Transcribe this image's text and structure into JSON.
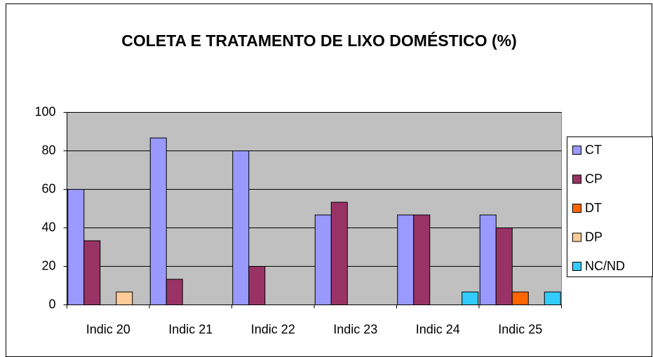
{
  "chart_data": {
    "type": "bar",
    "title": "COLETA E TRATAMENTO DE LIXO DOMÉSTICO (%)",
    "categories": [
      "Indic 20",
      "Indic 21",
      "Indic 22",
      "Indic 23",
      "Indic 24",
      "Indic 25"
    ],
    "series": [
      {
        "name": "CT",
        "color": "#9999ff",
        "values": [
          60,
          86.7,
          80,
          46.7,
          46.7,
          46.7
        ]
      },
      {
        "name": "CP",
        "color": "#993366",
        "values": [
          33.3,
          13.3,
          20,
          53.3,
          46.7,
          40
        ]
      },
      {
        "name": "DT",
        "color": "#ff6600",
        "values": [
          0,
          0,
          0,
          0,
          0,
          6.7
        ]
      },
      {
        "name": "DP",
        "color": "#ffcc99",
        "values": [
          6.7,
          0,
          0,
          0,
          0,
          0
        ]
      },
      {
        "name": "NC/ND",
        "color": "#33ccff",
        "values": [
          0,
          0,
          0,
          0,
          6.7,
          6.7
        ]
      }
    ],
    "ylim": [
      0,
      100
    ],
    "yticks": [
      0,
      20,
      40,
      60,
      80,
      100
    ],
    "grid": true,
    "legend": "right"
  }
}
